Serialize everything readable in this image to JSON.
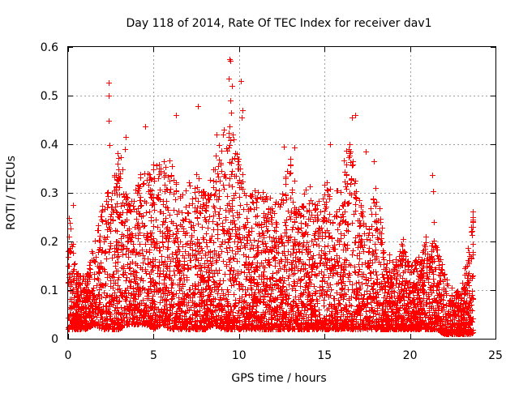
{
  "chart_data": {
    "type": "scatter",
    "title": "Day 118 of 2014, Rate Of TEC Index for receiver dav1",
    "xlabel": "GPS time / hours",
    "ylabel": "ROTI / TECUs",
    "xlim": [
      0,
      25
    ],
    "ylim": [
      0,
      0.6
    ],
    "grid": true,
    "marker": "+",
    "color": "#ff0000",
    "xticks": [
      {
        "value": 0,
        "label": "0"
      },
      {
        "value": 5,
        "label": "5"
      },
      {
        "value": 10,
        "label": "10"
      },
      {
        "value": 15,
        "label": "15"
      },
      {
        "value": 20,
        "label": "20"
      },
      {
        "value": 25,
        "label": "25"
      }
    ],
    "yticks": [
      {
        "value": 0,
        "label": "0"
      },
      {
        "value": 0.1,
        "label": "0.1"
      },
      {
        "value": 0.2,
        "label": "0.2"
      },
      {
        "value": 0.3,
        "label": "0.3"
      },
      {
        "value": 0.4,
        "label": "0.4"
      },
      {
        "value": 0.5,
        "label": "0.5"
      },
      {
        "value": 0.6,
        "label": "0.6"
      }
    ],
    "series": [
      {
        "name": "ROTI",
        "envelope_hours": [
          0.0,
          0.5,
          1.0,
          1.5,
          2.0,
          2.5,
          3.0,
          3.5,
          4.0,
          4.5,
          5.0,
          5.5,
          6.0,
          6.5,
          7.0,
          7.5,
          8.0,
          8.5,
          9.0,
          9.5,
          10.0,
          10.5,
          11.0,
          11.5,
          12.0,
          12.5,
          13.0,
          13.5,
          14.0,
          14.5,
          15.0,
          15.5,
          16.0,
          16.5,
          17.0,
          17.5,
          18.0,
          18.5,
          19.0,
          19.5,
          20.0,
          20.5,
          21.0,
          21.5,
          22.0,
          22.5,
          23.0,
          23.5,
          23.7
        ],
        "envelope_upper_roti": [
          0.27,
          0.14,
          0.13,
          0.2,
          0.28,
          0.33,
          0.4,
          0.28,
          0.33,
          0.35,
          0.36,
          0.37,
          0.37,
          0.3,
          0.32,
          0.34,
          0.3,
          0.36,
          0.42,
          0.45,
          0.38,
          0.3,
          0.31,
          0.3,
          0.29,
          0.3,
          0.38,
          0.3,
          0.32,
          0.3,
          0.35,
          0.3,
          0.33,
          0.45,
          0.3,
          0.23,
          0.32,
          0.2,
          0.16,
          0.2,
          0.15,
          0.17,
          0.22,
          0.2,
          0.14,
          0.1,
          0.1,
          0.22,
          0.26
        ],
        "envelope_lower_roti": [
          0.02,
          0.02,
          0.02,
          0.03,
          0.02,
          0.02,
          0.02,
          0.03,
          0.03,
          0.03,
          0.02,
          0.03,
          0.02,
          0.02,
          0.02,
          0.02,
          0.02,
          0.03,
          0.02,
          0.02,
          0.02,
          0.02,
          0.02,
          0.02,
          0.02,
          0.02,
          0.02,
          0.02,
          0.02,
          0.02,
          0.02,
          0.02,
          0.02,
          0.02,
          0.02,
          0.02,
          0.02,
          0.02,
          0.02,
          0.02,
          0.02,
          0.02,
          0.02,
          0.02,
          0.01,
          0.01,
          0.01,
          0.01,
          0.01
        ],
        "point_count": 9000,
        "outliers": [
          {
            "x": 0.3,
            "y": 0.275
          },
          {
            "x": 2.35,
            "y": 0.527
          },
          {
            "x": 2.35,
            "y": 0.5
          },
          {
            "x": 2.35,
            "y": 0.448
          },
          {
            "x": 2.4,
            "y": 0.398
          },
          {
            "x": 3.35,
            "y": 0.415
          },
          {
            "x": 3.3,
            "y": 0.39
          },
          {
            "x": 4.5,
            "y": 0.437
          },
          {
            "x": 6.3,
            "y": 0.46
          },
          {
            "x": 7.6,
            "y": 0.479
          },
          {
            "x": 8.7,
            "y": 0.42
          },
          {
            "x": 9.1,
            "y": 0.43
          },
          {
            "x": 9.45,
            "y": 0.575
          },
          {
            "x": 9.5,
            "y": 0.572
          },
          {
            "x": 9.4,
            "y": 0.535
          },
          {
            "x": 9.6,
            "y": 0.52
          },
          {
            "x": 9.5,
            "y": 0.49
          },
          {
            "x": 9.55,
            "y": 0.465
          },
          {
            "x": 10.1,
            "y": 0.53
          },
          {
            "x": 10.2,
            "y": 0.47
          },
          {
            "x": 10.15,
            "y": 0.455
          },
          {
            "x": 12.6,
            "y": 0.395
          },
          {
            "x": 13.25,
            "y": 0.393
          },
          {
            "x": 15.3,
            "y": 0.4
          },
          {
            "x": 16.6,
            "y": 0.455
          },
          {
            "x": 16.8,
            "y": 0.46
          },
          {
            "x": 17.4,
            "y": 0.385
          },
          {
            "x": 17.9,
            "y": 0.365
          },
          {
            "x": 18.0,
            "y": 0.31
          },
          {
            "x": 19.6,
            "y": 0.205
          },
          {
            "x": 21.3,
            "y": 0.337
          },
          {
            "x": 21.35,
            "y": 0.303
          },
          {
            "x": 21.4,
            "y": 0.24
          },
          {
            "x": 20.9,
            "y": 0.21
          },
          {
            "x": 23.65,
            "y": 0.262
          },
          {
            "x": 23.65,
            "y": 0.24
          }
        ]
      }
    ]
  }
}
